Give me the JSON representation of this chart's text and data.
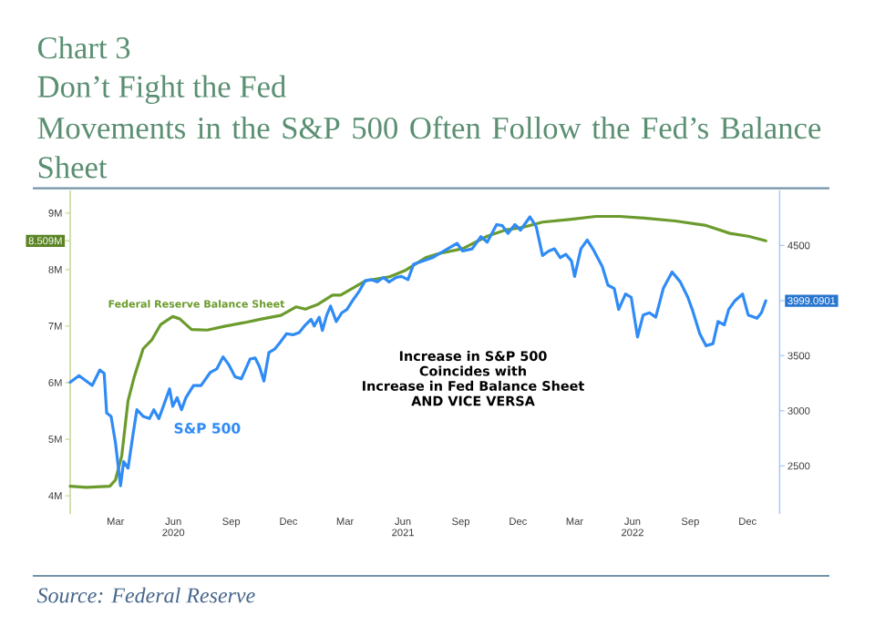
{
  "chart_data": {
    "type": "line",
    "title": "Don’t Fight the Fed",
    "subtitle": "Movements in the S&P 500 Often Follow the Fed’s Balance Sheet",
    "annotations": [
      "Chart 3",
      "Increase in S&P 500",
      "Coincides with",
      "Increase in Fed Balance Sheet",
      "AND VICE VERSA",
      "Source: Federal Reserve"
    ],
    "xlim": [
      "2020-01-03",
      "2023-02-04"
    ],
    "xticks": [
      {
        "value": "2020-03-15",
        "label": "Mar"
      },
      {
        "value": "2020-06-15",
        "label": "Jun 2020"
      },
      {
        "value": "2020-09-15",
        "label": "Sep"
      },
      {
        "value": "2020-12-15",
        "label": "Dec"
      },
      {
        "value": "2021-03-15",
        "label": "Mar"
      },
      {
        "value": "2021-06-15",
        "label": "Jun 2021"
      },
      {
        "value": "2021-09-15",
        "label": "Sep"
      },
      {
        "value": "2021-12-15",
        "label": "Dec"
      },
      {
        "value": "2022-03-15",
        "label": "Mar"
      },
      {
        "value": "2022-06-15",
        "label": "Jun 2022"
      },
      {
        "value": "2022-09-15",
        "label": "Sep"
      },
      {
        "value": "2022-12-15",
        "label": "Dec"
      }
    ],
    "ylim": [
      3.68,
      9.4
    ],
    "yticks": [
      {
        "value": 4,
        "label": "4M"
      },
      {
        "value": 5,
        "label": "5M"
      },
      {
        "value": 6,
        "label": "6M"
      },
      {
        "value": 7,
        "label": "7M"
      },
      {
        "value": 8,
        "label": "8M"
      },
      {
        "value": 8.509,
        "label": "8.509M"
      },
      {
        "value": 9,
        "label": "9M"
      }
    ],
    "y2lim": [
      2065,
      5000
    ],
    "y2ticks": [
      2500,
      3000,
      3500,
      3999.0901,
      4500
    ],
    "series": [
      {
        "name": "Federal Reserve Balance Sheet",
        "color": "#6b9b2c",
        "x": [
          "2020-01-03",
          "2020-01-29",
          "2020-03-06",
          "2020-03-15",
          "2020-03-25",
          "2020-04-04",
          "2020-04-14",
          "2020-04-28",
          "2020-05-12",
          "2020-05-26",
          "2020-06-14",
          "2020-06-25",
          "2020-07-14",
          "2020-08-08",
          "2020-09-06",
          "2020-10-05",
          "2020-11-04",
          "2020-12-03",
          "2020-12-27",
          "2021-01-11",
          "2021-01-30",
          "2021-02-23",
          "2021-03-08",
          "2021-03-27",
          "2021-04-16",
          "2021-05-24",
          "2021-06-18",
          "2021-07-21",
          "2021-08-10",
          "2021-09-18",
          "2021-10-27",
          "2021-11-25",
          "2021-12-24",
          "2022-01-23",
          "2022-03-10",
          "2022-04-18",
          "2022-05-26",
          "2022-07-04",
          "2022-08-22",
          "2022-10-10",
          "2022-11-17",
          "2022-12-16",
          "2023-01-13"
        ],
        "values": [
          4.17,
          4.15,
          4.17,
          4.28,
          4.71,
          5.68,
          6.11,
          6.6,
          6.76,
          7.03,
          7.17,
          7.13,
          6.94,
          6.93,
          7.0,
          7.06,
          7.13,
          7.19,
          7.34,
          7.3,
          7.38,
          7.55,
          7.55,
          7.67,
          7.8,
          7.87,
          7.98,
          8.21,
          8.28,
          8.37,
          8.59,
          8.7,
          8.75,
          8.84,
          8.89,
          8.94,
          8.94,
          8.91,
          8.86,
          8.78,
          8.64,
          8.59,
          8.509
        ]
      },
      {
        "name": "S&P 500",
        "color": "#2f8bf5",
        "axis": "y2",
        "x": [
          "2020-01-03",
          "2020-01-17",
          "2020-01-31",
          "2020-02-07",
          "2020-02-19",
          "2020-02-26",
          "2020-03-01",
          "2020-03-08",
          "2020-03-15",
          "2020-03-23",
          "2020-03-28",
          "2020-04-04",
          "2020-04-12",
          "2020-04-18",
          "2020-04-28",
          "2020-05-08",
          "2020-05-15",
          "2020-05-23",
          "2020-05-30",
          "2020-06-09",
          "2020-06-14",
          "2020-06-21",
          "2020-06-28",
          "2020-07-05",
          "2020-07-17",
          "2020-07-29",
          "2020-08-13",
          "2020-08-23",
          "2020-09-02",
          "2020-09-11",
          "2020-09-21",
          "2020-10-01",
          "2020-10-15",
          "2020-10-23",
          "2020-10-30",
          "2020-11-06",
          "2020-11-14",
          "2020-11-23",
          "2020-12-03",
          "2020-12-12",
          "2020-12-22",
          "2021-01-01",
          "2021-01-11",
          "2021-01-20",
          "2021-01-25",
          "2021-02-02",
          "2021-02-07",
          "2021-02-14",
          "2021-02-20",
          "2021-03-01",
          "2021-03-10",
          "2021-03-18",
          "2021-03-27",
          "2021-04-07",
          "2021-04-16",
          "2021-04-26",
          "2021-05-05",
          "2021-05-15",
          "2021-05-24",
          "2021-06-04",
          "2021-06-13",
          "2021-06-23",
          "2021-07-02",
          "2021-07-17",
          "2021-08-01",
          "2021-08-10",
          "2021-08-25",
          "2021-09-09",
          "2021-09-18",
          "2021-10-03",
          "2021-10-17",
          "2021-10-27",
          "2021-11-11",
          "2021-11-20",
          "2021-11-29",
          "2021-12-10",
          "2021-12-19",
          "2022-01-03",
          "2022-01-13",
          "2022-01-23",
          "2022-02-02",
          "2022-02-11",
          "2022-02-20",
          "2022-03-01",
          "2022-03-10",
          "2022-03-15",
          "2022-03-25",
          "2022-04-04",
          "2022-04-13",
          "2022-04-28",
          "2022-05-07",
          "2022-05-17",
          "2022-05-24",
          "2022-06-04",
          "2022-06-13",
          "2022-06-23",
          "2022-07-02",
          "2022-07-12",
          "2022-07-22",
          "2022-08-03",
          "2022-08-17",
          "2022-08-30",
          "2022-09-11",
          "2022-09-18",
          "2022-09-30",
          "2022-10-10",
          "2022-10-21",
          "2022-10-29",
          "2022-11-08",
          "2022-11-15",
          "2022-11-25",
          "2022-12-07",
          "2022-12-16",
          "2022-12-30",
          "2023-01-06",
          "2023-01-13"
        ],
        "values": [
          3260,
          3320,
          3260,
          3230,
          3370,
          3340,
          2980,
          2950,
          2710,
          2320,
          2540,
          2480,
          2790,
          3010,
          2950,
          2930,
          3010,
          2930,
          3040,
          3200,
          3040,
          3120,
          3010,
          3120,
          3230,
          3230,
          3350,
          3380,
          3490,
          3420,
          3310,
          3290,
          3470,
          3480,
          3400,
          3270,
          3530,
          3560,
          3630,
          3700,
          3690,
          3710,
          3780,
          3830,
          3770,
          3850,
          3730,
          3870,
          3950,
          3810,
          3890,
          3920,
          4000,
          4090,
          4180,
          4190,
          4170,
          4210,
          4170,
          4210,
          4220,
          4190,
          4330,
          4360,
          4390,
          4420,
          4470,
          4520,
          4450,
          4470,
          4580,
          4530,
          4690,
          4680,
          4610,
          4690,
          4640,
          4760,
          4670,
          4410,
          4450,
          4470,
          4390,
          4420,
          4360,
          4220,
          4470,
          4550,
          4470,
          4310,
          4140,
          4110,
          3920,
          4060,
          4030,
          3670,
          3870,
          3890,
          3850,
          4110,
          4260,
          4170,
          4030,
          3920,
          3700,
          3590,
          3610,
          3810,
          3780,
          3920,
          4000,
          4060,
          3870,
          3840,
          3890,
          3999.0901
        ]
      }
    ]
  }
}
